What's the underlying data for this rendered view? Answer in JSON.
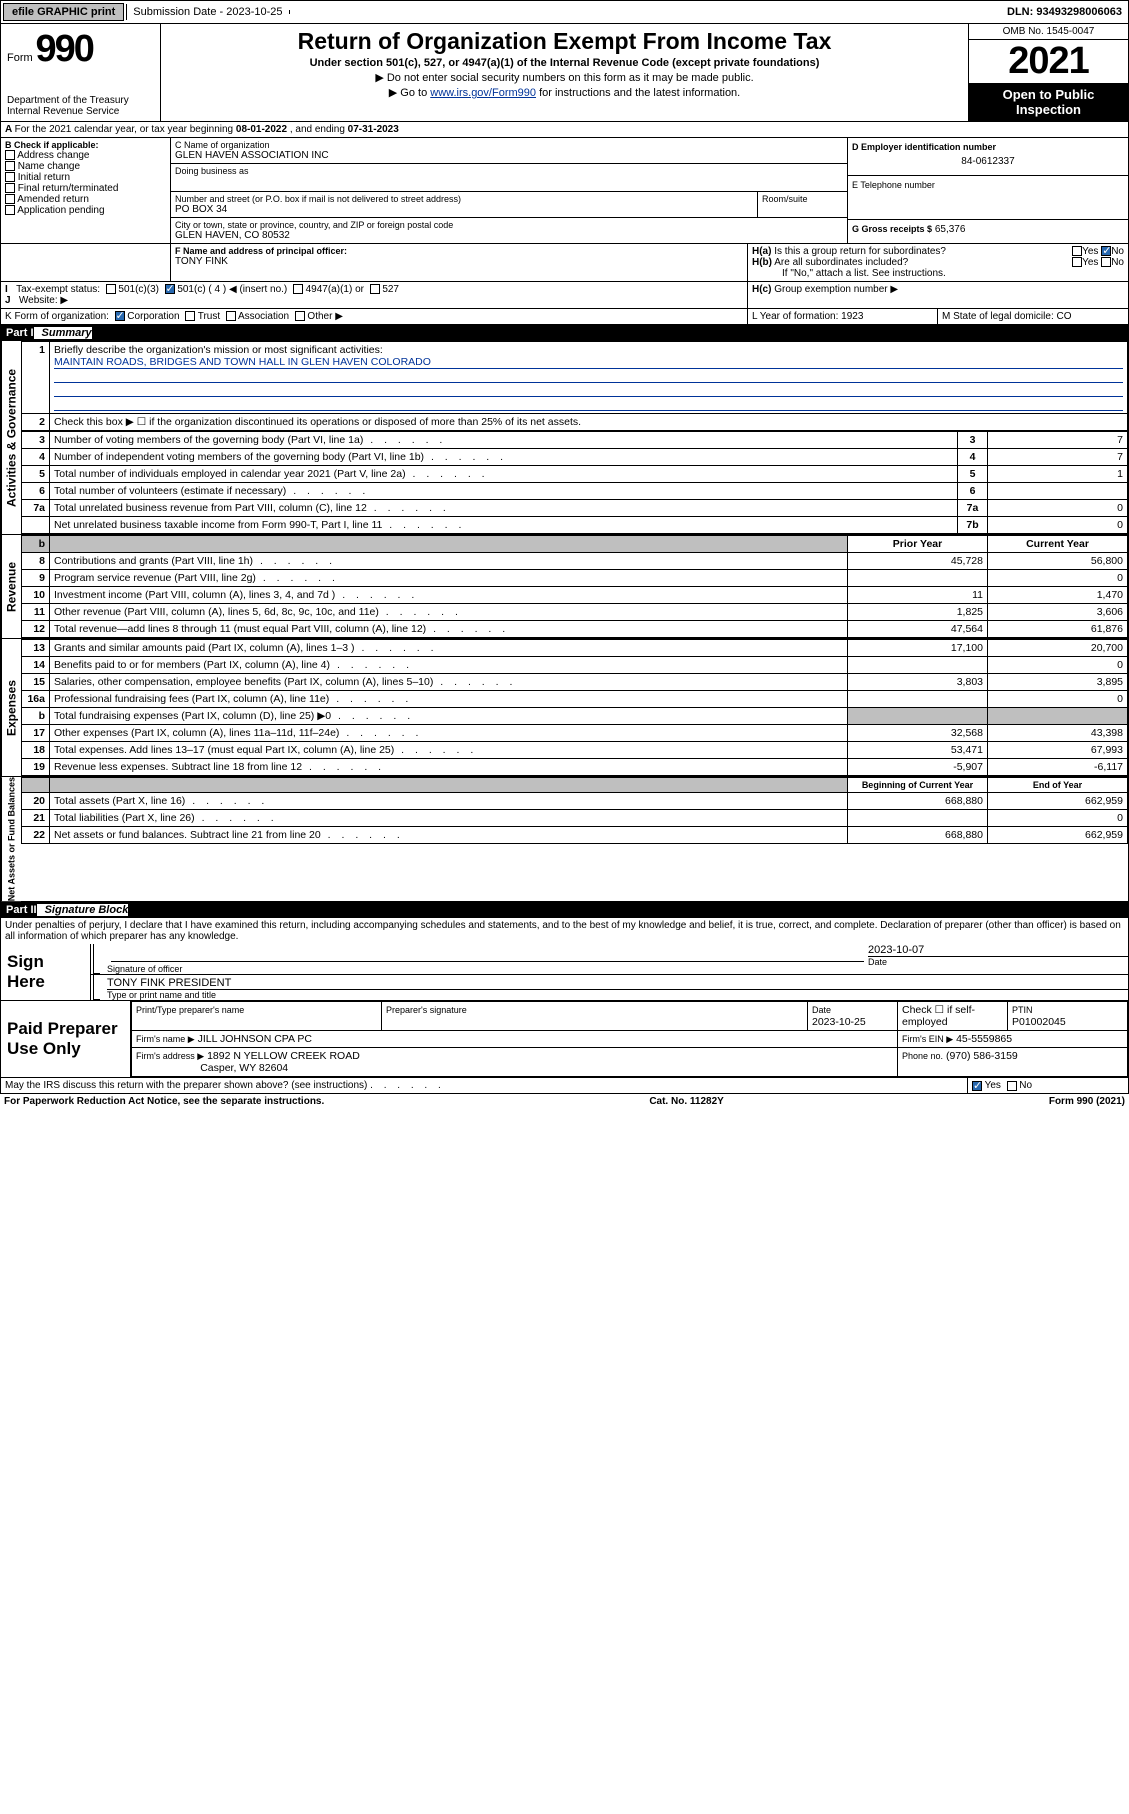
{
  "topbar": {
    "efile": "efile GRAPHIC print",
    "sub_label": "Submission Date - 2023-10-25",
    "dln": "DLN: 93493298006063"
  },
  "header": {
    "form_label": "Form",
    "form_no": "990",
    "title": "Return of Organization Exempt From Income Tax",
    "sub1": "Under section 501(c), 527, or 4947(a)(1) of the Internal Revenue Code (except private foundations)",
    "sub2": "▶ Do not enter social security numbers on this form as it may be made public.",
    "sub3_pre": "▶ Go to ",
    "sub3_link": "www.irs.gov/Form990",
    "sub3_post": " for instructions and the latest information.",
    "dept": "Department of the Treasury",
    "irs": "Internal Revenue Service",
    "omb": "OMB No. 1545-0047",
    "year": "2021",
    "inspect": "Open to Public Inspection"
  },
  "A": {
    "text": "For the 2021 calendar year, or tax year beginning ",
    "begin": "08-01-2022",
    "mid": " , and ending ",
    "end": "07-31-2023"
  },
  "B": {
    "label": "B Check if applicable:",
    "items": [
      "Address change",
      "Name change",
      "Initial return",
      "Final return/terminated",
      "Amended return",
      "Application pending"
    ]
  },
  "C": {
    "name_label": "C Name of organization",
    "name": "GLEN HAVEN ASSOCIATION INC",
    "dba_label": "Doing business as",
    "addr_label": "Number and street (or P.O. box if mail is not delivered to street address)",
    "room_label": "Room/suite",
    "addr": "PO BOX 34",
    "city_label": "City or town, state or province, country, and ZIP or foreign postal code",
    "city": "GLEN HAVEN, CO  80532"
  },
  "D": {
    "label": "D Employer identification number",
    "val": "84-0612337"
  },
  "E": {
    "label": "E Telephone number",
    "val": ""
  },
  "G": {
    "label": "G Gross receipts $",
    "val": "65,376"
  },
  "F": {
    "label": "F Name and address of principal officer:",
    "name": "TONY FINK"
  },
  "H": {
    "a": "Is this a group return for subordinates?",
    "b": "Are all subordinates included?",
    "b_note": "If \"No,\" attach a list. See instructions.",
    "c": "Group exemption number ▶",
    "yes": "Yes",
    "no": "No"
  },
  "I": {
    "label": "Tax-exempt status:",
    "c4": "501(c) ( 4 ) ◀ (insert no.)",
    "c3": "501(c)(3)",
    "a4947": "4947(a)(1) or",
    "527": "527"
  },
  "J": {
    "label": "Website: ▶"
  },
  "K": {
    "label": "K Form of organization:",
    "corp": "Corporation",
    "trust": "Trust",
    "assoc": "Association",
    "other": "Other ▶"
  },
  "L": {
    "label": "L Year of formation:",
    "val": "1923"
  },
  "M": {
    "label": "M State of legal domicile:",
    "val": "CO"
  },
  "part1": {
    "label": "Part I",
    "title": "Summary"
  },
  "p1": {
    "q1": "Briefly describe the organization's mission or most significant activities:",
    "q1v": "MAINTAIN ROADS, BRIDGES AND TOWN HALL IN GLEN HAVEN COLORADO",
    "q2": "Check this box ▶ ☐  if the organization discontinued its operations or disposed of more than 25% of its net assets.",
    "rows_gov": [
      {
        "n": "3",
        "d": "Number of voting members of the governing body (Part VI, line 1a)",
        "b": "3",
        "v": "7"
      },
      {
        "n": "4",
        "d": "Number of independent voting members of the governing body (Part VI, line 1b)",
        "b": "4",
        "v": "7"
      },
      {
        "n": "5",
        "d": "Total number of individuals employed in calendar year 2021 (Part V, line 2a)",
        "b": "5",
        "v": "1"
      },
      {
        "n": "6",
        "d": "Total number of volunteers (estimate if necessary)",
        "b": "6",
        "v": ""
      },
      {
        "n": "7a",
        "d": "Total unrelated business revenue from Part VIII, column (C), line 12",
        "b": "7a",
        "v": "0"
      },
      {
        "n": "",
        "d": "Net unrelated business taxable income from Form 990-T, Part I, line 11",
        "b": "7b",
        "v": "0"
      }
    ],
    "col_prior": "Prior Year",
    "col_curr": "Current Year",
    "rows_rev": [
      {
        "n": "8",
        "d": "Contributions and grants (Part VIII, line 1h)",
        "p": "45,728",
        "c": "56,800"
      },
      {
        "n": "9",
        "d": "Program service revenue (Part VIII, line 2g)",
        "p": "",
        "c": "0"
      },
      {
        "n": "10",
        "d": "Investment income (Part VIII, column (A), lines 3, 4, and 7d )",
        "p": "11",
        "c": "1,470"
      },
      {
        "n": "11",
        "d": "Other revenue (Part VIII, column (A), lines 5, 6d, 8c, 9c, 10c, and 11e)",
        "p": "1,825",
        "c": "3,606"
      },
      {
        "n": "12",
        "d": "Total revenue—add lines 8 through 11 (must equal Part VIII, column (A), line 12)",
        "p": "47,564",
        "c": "61,876"
      }
    ],
    "rows_exp": [
      {
        "n": "13",
        "d": "Grants and similar amounts paid (Part IX, column (A), lines 1–3 )",
        "p": "17,100",
        "c": "20,700"
      },
      {
        "n": "14",
        "d": "Benefits paid to or for members (Part IX, column (A), line 4)",
        "p": "",
        "c": "0"
      },
      {
        "n": "15",
        "d": "Salaries, other compensation, employee benefits (Part IX, column (A), lines 5–10)",
        "p": "3,803",
        "c": "3,895"
      },
      {
        "n": "16a",
        "d": "Professional fundraising fees (Part IX, column (A), line 11e)",
        "p": "",
        "c": "0"
      },
      {
        "n": "b",
        "d": "Total fundraising expenses (Part IX, column (D), line 25) ▶0",
        "p": "grey",
        "c": "grey"
      },
      {
        "n": "17",
        "d": "Other expenses (Part IX, column (A), lines 11a–11d, 11f–24e)",
        "p": "32,568",
        "c": "43,398"
      },
      {
        "n": "18",
        "d": "Total expenses. Add lines 13–17 (must equal Part IX, column (A), line 25)",
        "p": "53,471",
        "c": "67,993"
      },
      {
        "n": "19",
        "d": "Revenue less expenses. Subtract line 18 from line 12",
        "p": "-5,907",
        "c": "-6,117"
      }
    ],
    "col_beg": "Beginning of Current Year",
    "col_end": "End of Year",
    "rows_na": [
      {
        "n": "20",
        "d": "Total assets (Part X, line 16)",
        "p": "668,880",
        "c": "662,959"
      },
      {
        "n": "21",
        "d": "Total liabilities (Part X, line 26)",
        "p": "",
        "c": "0"
      },
      {
        "n": "22",
        "d": "Net assets or fund balances. Subtract line 21 from line 20",
        "p": "668,880",
        "c": "662,959"
      }
    ]
  },
  "vert": {
    "gov": "Activities & Governance",
    "rev": "Revenue",
    "exp": "Expenses",
    "na": "Net Assets or Fund Balances"
  },
  "part2": {
    "label": "Part II",
    "title": "Signature Block"
  },
  "sig": {
    "decl": "Under penalties of perjury, I declare that I have examined this return, including accompanying schedules and statements, and to the best of my knowledge and belief, it is true, correct, and complete. Declaration of preparer (other than officer) is based on all information of which preparer has any knowledge.",
    "sign_here": "Sign Here",
    "sig_officer": "Signature of officer",
    "date": "Date",
    "date_val": "2023-10-07",
    "name_title": "TONY FINK PRESIDENT",
    "name_title_label": "Type or print name and title",
    "paid": "Paid Preparer Use Only",
    "prep_name": "Print/Type preparer's name",
    "prep_sig": "Preparer's signature",
    "prep_date": "Date",
    "prep_date_val": "2023-10-25",
    "check_self": "Check ☐ if self-employed",
    "ptin": "PTIN",
    "ptin_val": "P01002045",
    "firm_name_l": "Firm's name    ▶",
    "firm_name": "JILL JOHNSON CPA PC",
    "firm_ein_l": "Firm's EIN ▶",
    "firm_ein": "45-5559865",
    "firm_addr_l": "Firm's address ▶",
    "firm_addr1": "1892 N YELLOW CREEK ROAD",
    "firm_addr2": "Casper, WY  82604",
    "phone_l": "Phone no.",
    "phone": "(970) 586-3159",
    "may": "May the IRS discuss this return with the preparer shown above? (see instructions)"
  },
  "footer": {
    "l": "For Paperwork Reduction Act Notice, see the separate instructions.",
    "c": "Cat. No. 11282Y",
    "r": "Form 990 (2021)"
  }
}
